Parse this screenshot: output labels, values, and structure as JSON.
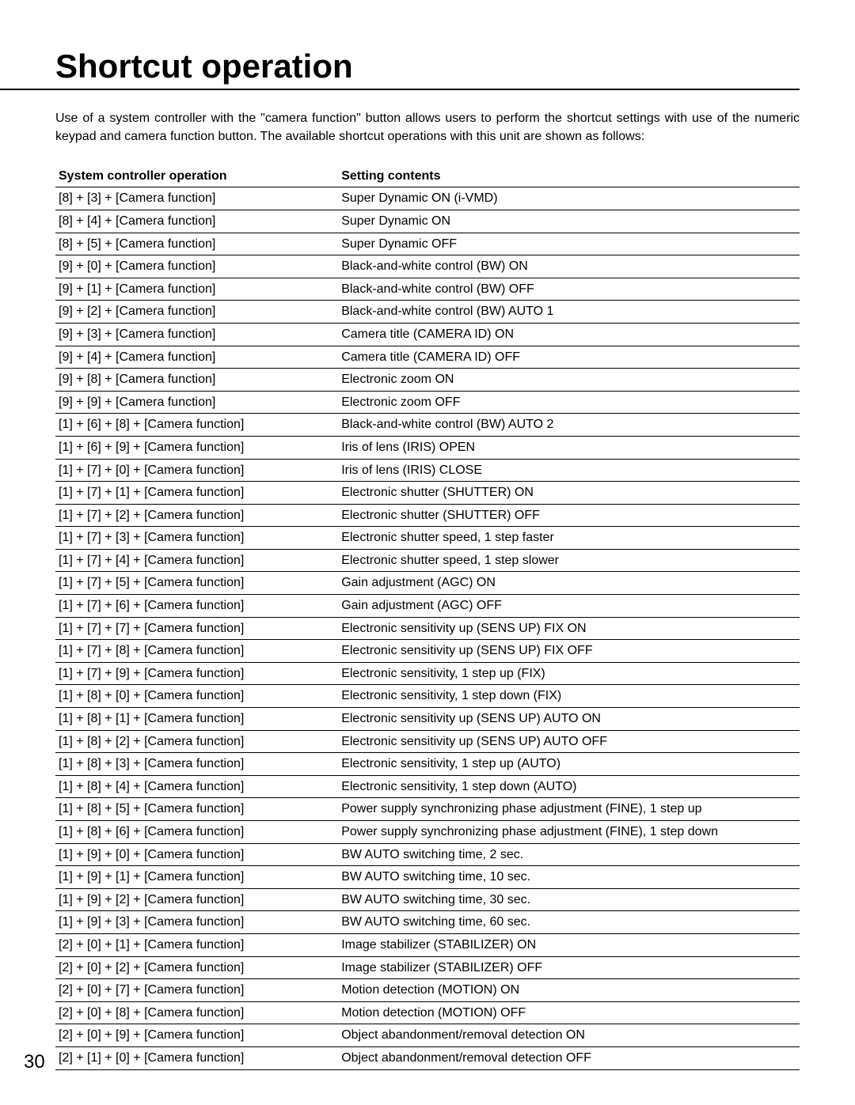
{
  "title": "Shortcut operation",
  "intro": "Use of a system controller with the \"camera function\" button allows users to perform the shortcut settings with use of the numeric keypad and camera function button. The available shortcut operations with this unit are shown as follows:",
  "page_number": "30",
  "table": {
    "headers": {
      "operation": "System controller operation",
      "setting": "Setting contents"
    },
    "rows": [
      {
        "op": "[8] + [3] + [Camera function]",
        "setting": "Super Dynamic ON (i-VMD)"
      },
      {
        "op": "[8] + [4] + [Camera function]",
        "setting": "Super Dynamic ON"
      },
      {
        "op": "[8] + [5] + [Camera function]",
        "setting": "Super Dynamic OFF"
      },
      {
        "op": "[9] + [0] + [Camera function]",
        "setting": "Black-and-white control (BW) ON"
      },
      {
        "op": "[9] + [1] + [Camera function]",
        "setting": "Black-and-white control (BW) OFF"
      },
      {
        "op": "[9] + [2] + [Camera function]",
        "setting": "Black-and-white control (BW) AUTO 1"
      },
      {
        "op": "[9] + [3] + [Camera function]",
        "setting": "Camera title (CAMERA ID) ON"
      },
      {
        "op": "[9] + [4] + [Camera function]",
        "setting": "Camera title (CAMERA ID) OFF"
      },
      {
        "op": "[9] + [8] + [Camera function]",
        "setting": "Electronic zoom ON"
      },
      {
        "op": "[9] + [9] + [Camera function]",
        "setting": "Electronic zoom OFF"
      },
      {
        "op": "[1] + [6] + [8] + [Camera function]",
        "setting": "Black-and-white control (BW) AUTO 2"
      },
      {
        "op": "[1] + [6] + [9] + [Camera function]",
        "setting": "Iris of lens (IRIS) OPEN"
      },
      {
        "op": "[1] + [7] + [0] + [Camera function]",
        "setting": "Iris of lens (IRIS) CLOSE"
      },
      {
        "op": "[1] + [7] + [1] + [Camera function]",
        "setting": "Electronic shutter (SHUTTER) ON"
      },
      {
        "op": "[1] + [7] + [2] + [Camera function]",
        "setting": "Electronic shutter (SHUTTER) OFF"
      },
      {
        "op": "[1] + [7] + [3] + [Camera function]",
        "setting": "Electronic shutter speed, 1 step faster"
      },
      {
        "op": "[1] + [7] + [4] + [Camera function]",
        "setting": "Electronic shutter speed, 1 step slower"
      },
      {
        "op": "[1] + [7] + [5] + [Camera function]",
        "setting": "Gain adjustment (AGC) ON"
      },
      {
        "op": "[1] + [7] + [6] + [Camera function]",
        "setting": "Gain adjustment (AGC) OFF"
      },
      {
        "op": "[1] + [7] + [7] + [Camera function]",
        "setting": "Electronic sensitivity up (SENS UP) FIX ON"
      },
      {
        "op": "[1] + [7] + [8] + [Camera function]",
        "setting": "Electronic sensitivity up (SENS UP) FIX OFF"
      },
      {
        "op": "[1] + [7] + [9] + [Camera function]",
        "setting": "Electronic sensitivity, 1 step up (FIX)"
      },
      {
        "op": "[1] + [8] + [0] + [Camera function]",
        "setting": "Electronic sensitivity, 1 step down (FIX)"
      },
      {
        "op": "[1] + [8] + [1] + [Camera function]",
        "setting": "Electronic sensitivity up (SENS UP) AUTO ON"
      },
      {
        "op": "[1] + [8] + [2] + [Camera function]",
        "setting": "Electronic sensitivity up (SENS UP) AUTO OFF"
      },
      {
        "op": "[1] + [8] + [3] + [Camera function]",
        "setting": "Electronic sensitivity, 1 step up (AUTO)"
      },
      {
        "op": "[1] + [8] + [4] + [Camera function]",
        "setting": "Electronic sensitivity, 1 step down (AUTO)"
      },
      {
        "op": "[1] + [8] + [5] + [Camera function]",
        "setting": "Power supply synchronizing phase adjustment (FINE), 1 step up"
      },
      {
        "op": "[1] + [8] + [6] + [Camera function]",
        "setting": "Power supply synchronizing phase adjustment (FINE), 1 step down"
      },
      {
        "op": "[1] + [9] + [0] + [Camera function]",
        "setting": "BW AUTO switching time, 2 sec."
      },
      {
        "op": "[1] + [9] + [1] + [Camera function]",
        "setting": "BW AUTO switching time, 10 sec."
      },
      {
        "op": "[1] + [9] + [2] + [Camera function]",
        "setting": "BW AUTO switching time, 30 sec."
      },
      {
        "op": "[1] + [9] + [3] + [Camera function]",
        "setting": "BW AUTO switching time, 60 sec."
      },
      {
        "op": "[2] + [0] + [1] + [Camera function]",
        "setting": "Image stabilizer (STABILIZER) ON"
      },
      {
        "op": "[2] + [0] + [2] + [Camera function]",
        "setting": "Image stabilizer (STABILIZER) OFF"
      },
      {
        "op": "[2] + [0] + [7] + [Camera function]",
        "setting": "Motion detection (MOTION) ON"
      },
      {
        "op": "[2] + [0] + [8] + [Camera function]",
        "setting": "Motion detection (MOTION) OFF"
      },
      {
        "op": "[2] + [0] + [9] + [Camera function]",
        "setting": "Object abandonment/removal detection ON"
      },
      {
        "op": "[2] + [1] + [0] + [Camera function]",
        "setting": "Object abandonment/removal detection OFF"
      }
    ]
  }
}
